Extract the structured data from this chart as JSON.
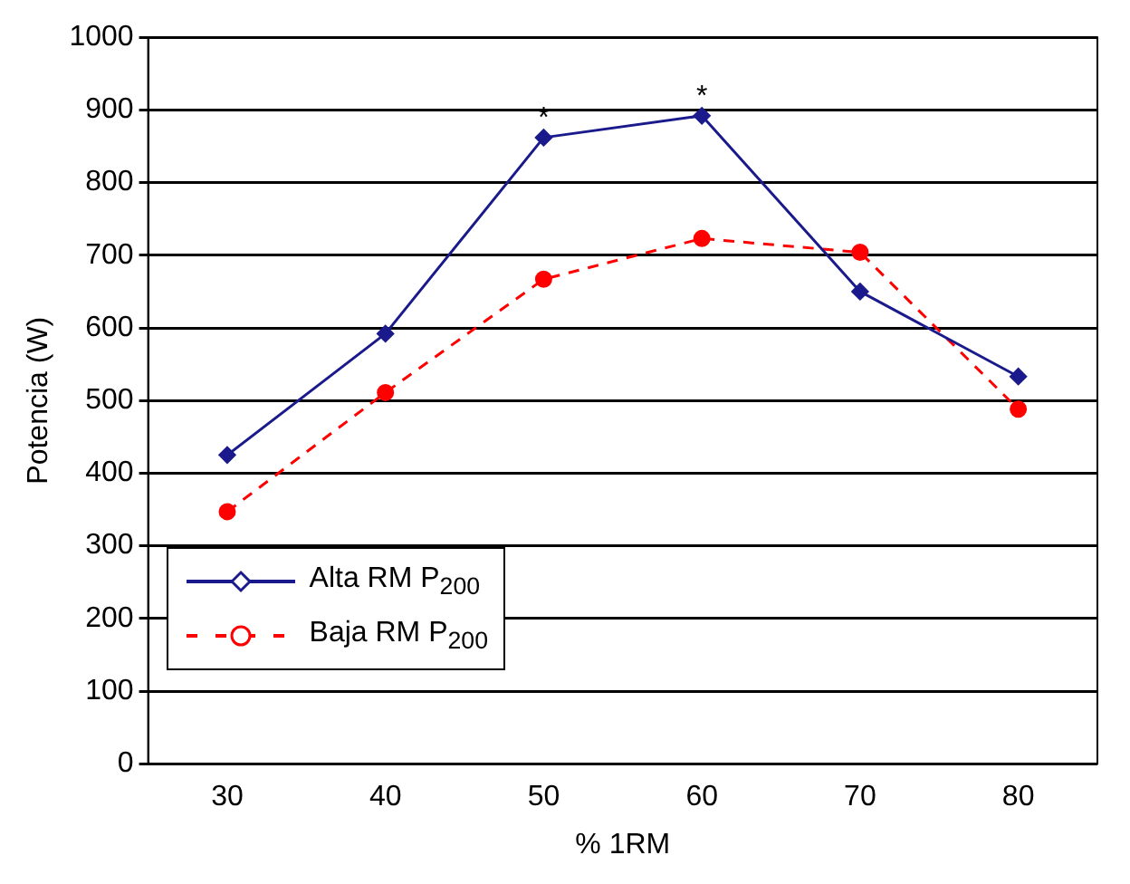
{
  "chart_data": {
    "type": "line",
    "xlabel": "% 1RM",
    "ylabel": "Potencia (W)",
    "categories": [
      "30",
      "40",
      "50",
      "60",
      "70",
      "80"
    ],
    "series": [
      {
        "name": "Alta RM P$_{200}$",
        "color": "#1a1a8c",
        "values": [
          425,
          592,
          862,
          892,
          650,
          533
        ],
        "marker": "diamond",
        "line_style": "solid"
      },
      {
        "name": "Baja RM P$_{200}$",
        "color": "#ff0000",
        "values": [
          347,
          511,
          667,
          723,
          704,
          488
        ],
        "marker": "circle",
        "line_style": "dashed"
      }
    ],
    "ylim": [
      0,
      1000
    ],
    "yticks": [
      0,
      100,
      200,
      300,
      400,
      500,
      600,
      700,
      800,
      900,
      1000
    ],
    "grid": "y",
    "legend": "bottom left",
    "annotations": [
      {
        "text": "*",
        "x": "50",
        "y": 862
      },
      {
        "text": "*",
        "x": "60",
        "y": 892
      }
    ]
  }
}
